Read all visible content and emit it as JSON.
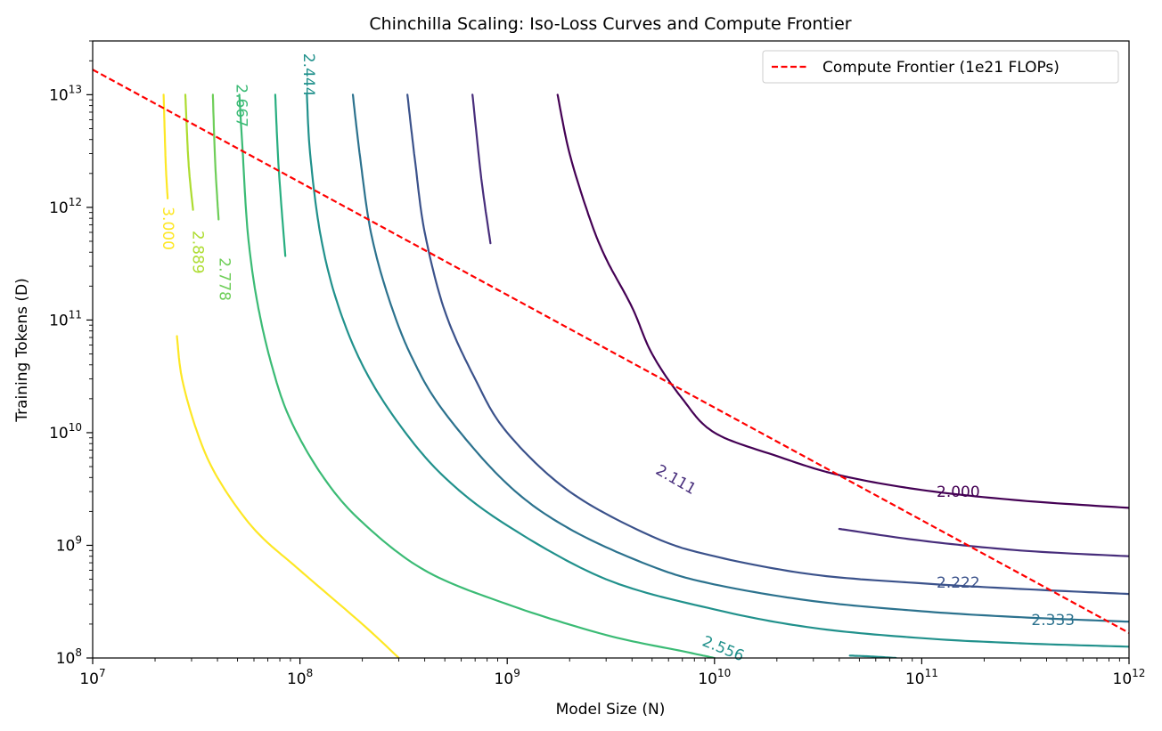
{
  "chart_data": {
    "type": "line",
    "title": "Chinchilla Scaling: Iso-Loss Curves and Compute Frontier",
    "xlabel": "Model Size (N)",
    "ylabel": "Training Tokens (D)",
    "xscale": "log",
    "yscale": "log",
    "xlim": [
      10000000.0,
      1000000000000.0
    ],
    "ylim": [
      100000000.0,
      30000000000000.0
    ],
    "x_tick_labels": [
      {
        "base": "10",
        "exp": "7"
      },
      {
        "base": "10",
        "exp": "8"
      },
      {
        "base": "10",
        "exp": "9"
      },
      {
        "base": "10",
        "exp": "10"
      },
      {
        "base": "10",
        "exp": "11"
      },
      {
        "base": "10",
        "exp": "12"
      }
    ],
    "y_tick_labels": [
      {
        "base": "10",
        "exp": "8"
      },
      {
        "base": "10",
        "exp": "9"
      },
      {
        "base": "10",
        "exp": "10"
      },
      {
        "base": "10",
        "exp": "11"
      },
      {
        "base": "10",
        "exp": "12"
      },
      {
        "base": "10",
        "exp": "13"
      }
    ],
    "grid": false,
    "legend": {
      "placement": "top-right",
      "entries": [
        "Compute Frontier (1e21 FLOPs)"
      ]
    },
    "frontier": {
      "name": "Compute Frontier (1e21 FLOPs)",
      "color": "#ff0000",
      "style": "dashed",
      "points": [
        [
          10000000.0,
          16700000000000.0
        ],
        [
          1000000000000.0,
          167000000.0
        ]
      ]
    },
    "contours": [
      {
        "level": "2.000",
        "color": "#440154",
        "points": [
          [
            1750000000.0,
            10000000000000.0
          ],
          [
            2000000000.0,
            3000000000000.0
          ],
          [
            2500000000.0,
            800000000000.0
          ],
          [
            3000000000.0,
            350000000000.0
          ],
          [
            4000000000.0,
            130000000000.0
          ],
          [
            5000000000.0,
            50000000000.0
          ],
          [
            7000000000.0,
            20000000000.0
          ],
          [
            10000000000.0,
            10000000000.0
          ],
          [
            20000000000.0,
            6200000000.0
          ],
          [
            40000000000.0,
            4200000000.0
          ],
          [
            100000000000.0,
            3100000000.0
          ],
          [
            300000000000.0,
            2500000000.0
          ],
          [
            1000000000000.0,
            2150000000.0
          ]
        ]
      },
      {
        "level": "2.111",
        "color": "#472d7b",
        "points": [
          [
            680000000.0,
            10000000000000.0
          ],
          [
            750000000.0,
            1800000000000.0
          ],
          [
            830000000.0,
            480000000000.0
          ]
        ]
      },
      {
        "level": "2.111",
        "color": "#472d7b",
        "points": [
          [
            40000000000.0,
            1400000000.0
          ],
          [
            100000000000.0,
            1100000000.0
          ],
          [
            300000000000.0,
            900000000.0
          ],
          [
            1000000000000.0,
            800000000.0
          ]
        ]
      },
      {
        "level": "2.222",
        "color": "#3b528b",
        "points": [
          [
            330000000.0,
            10000000000000.0
          ],
          [
            360000000.0,
            2500000000000.0
          ],
          [
            400000000.0,
            600000000000.0
          ],
          [
            500000000.0,
            120000000000.0
          ],
          [
            700000000.0,
            30000000000.0
          ],
          [
            1000000000.0,
            10000000000.0
          ],
          [
            2000000000.0,
            3000000000.0
          ],
          [
            5000000000.0,
            1200000000.0
          ],
          [
            10000000000.0,
            800000000.0
          ],
          [
            30000000000.0,
            550000000.0
          ],
          [
            100000000000.0,
            460000000.0
          ],
          [
            300000000000.0,
            410000000.0
          ],
          [
            1000000000000.0,
            370000000.0
          ]
        ]
      },
      {
        "level": "2.333",
        "color": "#2c728e",
        "points": [
          [
            180000000.0,
            10000000000000.0
          ],
          [
            195000000.0,
            2800000000000.0
          ],
          [
            220000000.0,
            600000000000.0
          ],
          [
            270000000.0,
            150000000000.0
          ],
          [
            350000000.0,
            45000000000.0
          ],
          [
            500000000.0,
            15000000000.0
          ],
          [
            1000000000.0,
            3500000000.0
          ],
          [
            2000000000.0,
            1400000000.0
          ],
          [
            5000000000.0,
            650000000.0
          ],
          [
            10000000000.0,
            450000000.0
          ],
          [
            30000000000.0,
            320000000.0
          ],
          [
            100000000000.0,
            260000000.0
          ],
          [
            300000000000.0,
            230000000.0
          ],
          [
            1000000000000.0,
            210000000.0
          ]
        ]
      },
      {
        "level": "2.444",
        "color": "#21918c",
        "points": [
          [
            108000000.0,
            10000000000000.0
          ],
          [
            112000000.0,
            3000000000000.0
          ],
          [
            125000000.0,
            600000000000.0
          ],
          [
            150000000.0,
            150000000000.0
          ],
          [
            200000000.0,
            40000000000.0
          ],
          [
            300000000.0,
            12000000000.0
          ],
          [
            500000000.0,
            4000000000.0
          ],
          [
            1000000000.0,
            1500000000.0
          ],
          [
            3000000000.0,
            500000000.0
          ],
          [
            10000000000.0,
            270000000.0
          ],
          [
            30000000000.0,
            185000000.0
          ],
          [
            100000000000.0,
            150000000.0
          ],
          [
            300000000000.0,
            135000000.0
          ],
          [
            1000000000000.0,
            126000000.0
          ]
        ]
      },
      {
        "level": "2.556",
        "color": "#21918c",
        "points": [
          [
            45000000000.0,
            105000000.0
          ],
          [
            58000000000.0,
            103000000.0
          ],
          [
            75000000000.0,
            100000000.0
          ]
        ]
      },
      {
        "level": "2.556",
        "color": "#28ae80",
        "points": [
          [
            76000000.0,
            10000000000000.0
          ],
          [
            79000000.0,
            2200000000000.0
          ],
          [
            85000000.0,
            370000000000.0
          ]
        ]
      },
      {
        "level": "2.667",
        "color": "#3bbb75",
        "points": [
          [
            51000000.0,
            10000000000000.0
          ],
          [
            53000000.0,
            3000000000000.0
          ],
          [
            56000000.0,
            600000000000.0
          ],
          [
            62000000.0,
            150000000000.0
          ],
          [
            73000000.0,
            40000000000.0
          ],
          [
            90000000.0,
            13000000000.0
          ],
          [
            130000000.0,
            4000000000.0
          ],
          [
            200000000.0,
            1600000000.0
          ],
          [
            400000000.0,
            600000000.0
          ],
          [
            1000000000.0,
            300000000.0
          ],
          [
            3000000000.0,
            160000000.0
          ],
          [
            7000000000.0,
            115000000.0
          ],
          [
            10000000000.0,
            100000000.0
          ]
        ]
      },
      {
        "level": "2.778",
        "color": "#6ece58",
        "points": [
          [
            38000000.0,
            10000000000000.0
          ],
          [
            39000000.0,
            2500000000000.0
          ],
          [
            40500000.0,
            780000000000.0
          ]
        ]
      },
      {
        "level": "2.889",
        "color": "#addc30",
        "points": [
          [
            28000000.0,
            10000000000000.0
          ],
          [
            29000000.0,
            2500000000000.0
          ],
          [
            30500000.0,
            950000000000.0
          ]
        ]
      },
      {
        "level": "3.000",
        "color": "#fde725",
        "points": [
          [
            22000000.0,
            10000000000000.0
          ],
          [
            22500000.0,
            2500000000000.0
          ],
          [
            23000000.0,
            1200000000000.0
          ]
        ]
      },
      {
        "level": "3.000",
        "color": "#fde725",
        "points": [
          [
            25500000.0,
            72000000000.0
          ],
          [
            27000000.0,
            30000000000.0
          ],
          [
            32000000.0,
            10000000000.0
          ],
          [
            40000000.0,
            4000000000.0
          ],
          [
            60000000.0,
            1400000000.0
          ],
          [
            100000000.0,
            600000000.0
          ],
          [
            200000000.0,
            200000000.0
          ],
          [
            300000000.0,
            100000000.0
          ]
        ]
      }
    ],
    "contour_labels": [
      {
        "text": "2.000",
        "x": 150000000000.0,
        "y": 2950000000.0,
        "rotation": 0,
        "color": "#440154"
      },
      {
        "text": "2.111",
        "x": 6500000000.0,
        "y": 3800000000.0,
        "rotation": 30,
        "color": "#472d7b"
      },
      {
        "text": "2.222",
        "x": 150000000000.0,
        "y": 460000000.0,
        "rotation": 0,
        "color": "#3b528b"
      },
      {
        "text": "2.333",
        "x": 430000000000.0,
        "y": 215000000.0,
        "rotation": 0,
        "color": "#2c728e"
      },
      {
        "text": "2.444",
        "x": 110000000.0,
        "y": 15000000000000.0,
        "rotation": 90,
        "color": "#21918c"
      },
      {
        "text": "2.556",
        "x": 11000000000.0,
        "y": 120000000.0,
        "rotation": 22,
        "color": "#21918c"
      },
      {
        "text": "2.667",
        "x": 52000000.0,
        "y": 8000000000000.0,
        "rotation": 90,
        "color": "#3bbb75"
      },
      {
        "text": "2.778",
        "x": 43000000.0,
        "y": 230000000000.0,
        "rotation": 90,
        "color": "#6ece58"
      },
      {
        "text": "2.889",
        "x": 32000000.0,
        "y": 400000000000.0,
        "rotation": 90,
        "color": "#addc30"
      },
      {
        "text": "3.000",
        "x": 23000000.0,
        "y": 650000000000.0,
        "rotation": 90,
        "color": "#fde725"
      }
    ]
  }
}
